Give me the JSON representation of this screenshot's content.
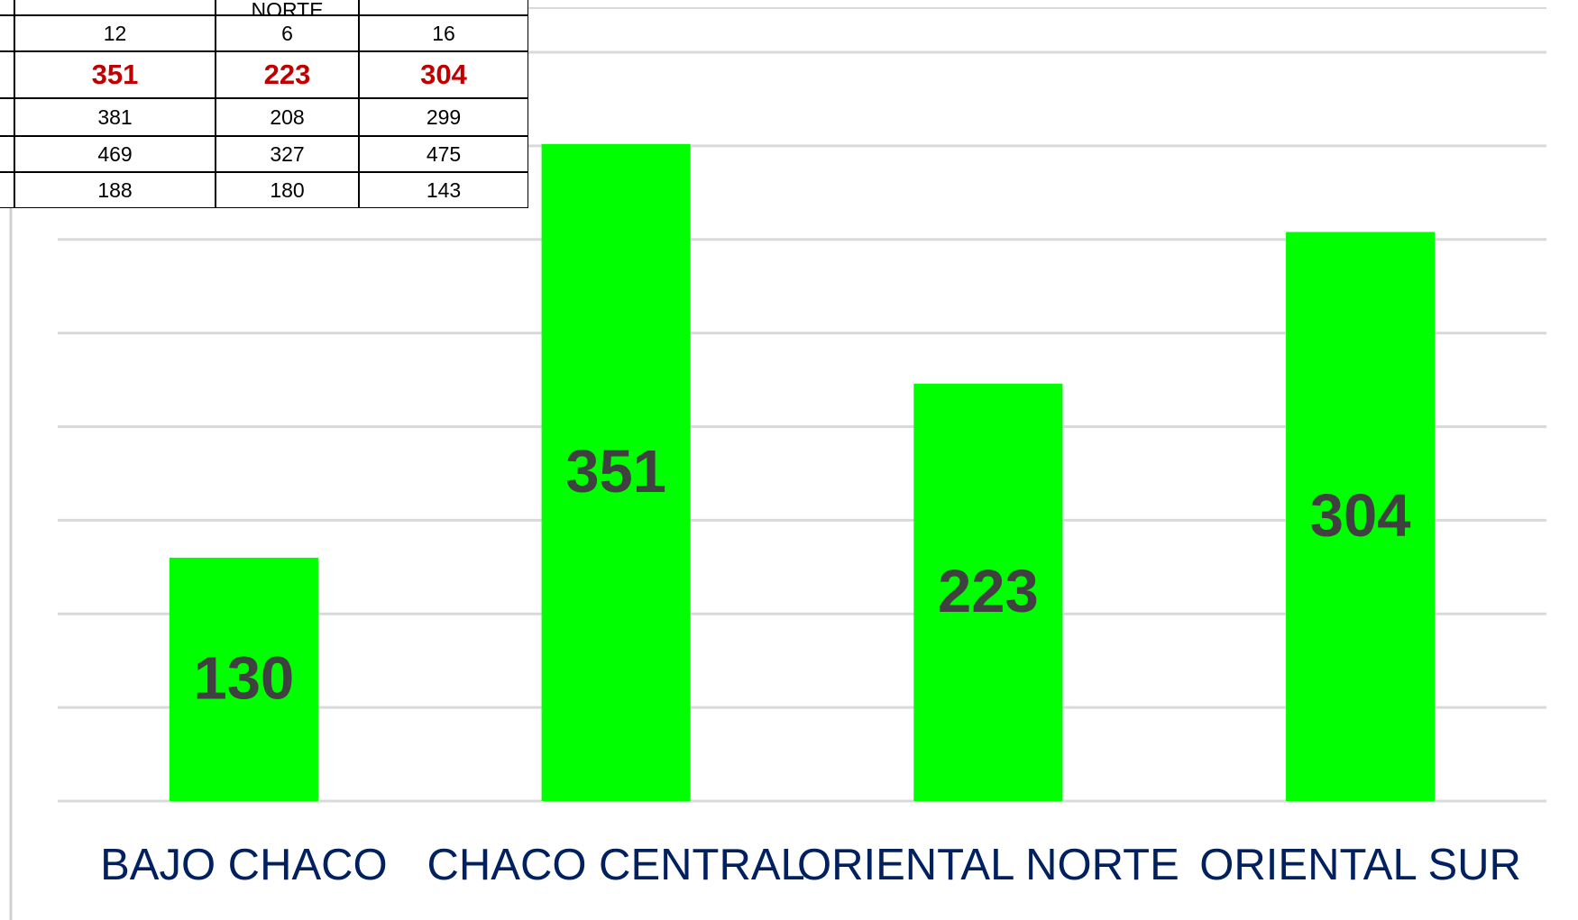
{
  "chart_data": {
    "type": "bar",
    "categories": [
      "BAJO CHACO",
      "CHACO CENTRAL",
      "ORIENTAL NORTE",
      "ORIENTAL SUR"
    ],
    "values": [
      130,
      351,
      223,
      304
    ],
    "color": "#00ff00",
    "ylim": [
      0,
      400
    ],
    "yticks": [
      0,
      50,
      100,
      150,
      200,
      250,
      300,
      350,
      400
    ],
    "grid": true
  },
  "table": {
    "header_cell": "NORTE",
    "rows": [
      [
        12,
        6,
        16
      ],
      [
        351,
        223,
        304
      ],
      [
        381,
        208,
        299
      ],
      [
        469,
        327,
        475
      ],
      [
        188,
        180,
        143
      ]
    ],
    "highlight_row": 1,
    "highlight_color": "#c00000"
  }
}
